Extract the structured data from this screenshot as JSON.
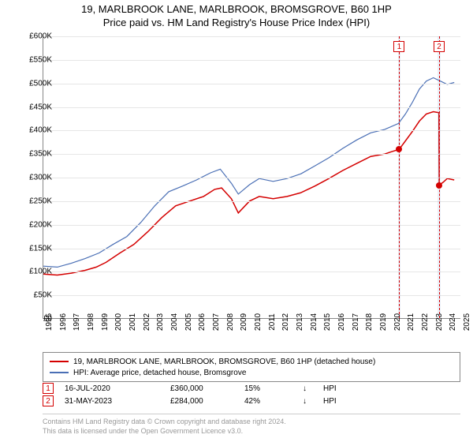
{
  "title": {
    "line1": "19, MARLBROOK LANE, MARLBROOK, BROMSGROVE, B60 1HP",
    "line2": "Price paid vs. HM Land Registry's House Price Index (HPI)"
  },
  "chart": {
    "type": "line",
    "background_color": "#ffffff",
    "grid_color": "#e6e6e6",
    "axis_color": "#888888",
    "xlim": [
      1995,
      2025
    ],
    "ylim": [
      0,
      600000
    ],
    "ytick_step": 50000,
    "yticks": [
      "£0",
      "£50K",
      "£100K",
      "£150K",
      "£200K",
      "£250K",
      "£300K",
      "£350K",
      "£400K",
      "£450K",
      "£500K",
      "£550K",
      "£600K"
    ],
    "xticks": [
      1995,
      1996,
      1997,
      1998,
      1999,
      2000,
      2001,
      2002,
      2003,
      2004,
      2005,
      2006,
      2007,
      2008,
      2009,
      2010,
      2011,
      2012,
      2013,
      2014,
      2015,
      2016,
      2017,
      2018,
      2019,
      2020,
      2021,
      2022,
      2023,
      2024,
      2025
    ],
    "series": [
      {
        "name": "property",
        "label": "19, MARLBROOK LANE, MARLBROOK, BROMSGROVE, B60 1HP (detached house)",
        "color": "#d40000",
        "line_width": 1.5,
        "data": [
          [
            1995.0,
            95000
          ],
          [
            1996.0,
            93000
          ],
          [
            1997.0,
            97000
          ],
          [
            1998.0,
            103000
          ],
          [
            1998.8,
            110000
          ],
          [
            1999.5,
            120000
          ],
          [
            2000.5,
            140000
          ],
          [
            2001.5,
            158000
          ],
          [
            2002.5,
            185000
          ],
          [
            2003.5,
            215000
          ],
          [
            2004.5,
            240000
          ],
          [
            2005.5,
            250000
          ],
          [
            2006.5,
            260000
          ],
          [
            2007.3,
            275000
          ],
          [
            2007.8,
            278000
          ],
          [
            2008.5,
            255000
          ],
          [
            2009.0,
            225000
          ],
          [
            2009.8,
            250000
          ],
          [
            2010.5,
            260000
          ],
          [
            2011.5,
            255000
          ],
          [
            2012.5,
            260000
          ],
          [
            2013.5,
            268000
          ],
          [
            2014.5,
            282000
          ],
          [
            2015.5,
            298000
          ],
          [
            2016.5,
            315000
          ],
          [
            2017.5,
            330000
          ],
          [
            2018.5,
            345000
          ],
          [
            2019.5,
            350000
          ],
          [
            2020.0,
            355000
          ],
          [
            2020.55,
            360000
          ],
          [
            2021.0,
            378000
          ],
          [
            2021.5,
            398000
          ],
          [
            2022.0,
            420000
          ],
          [
            2022.5,
            435000
          ],
          [
            2023.0,
            440000
          ],
          [
            2023.4,
            438000
          ],
          [
            2023.42,
            284000
          ],
          [
            2023.7,
            290000
          ],
          [
            2024.0,
            298000
          ],
          [
            2024.5,
            295000
          ]
        ]
      },
      {
        "name": "hpi",
        "label": "HPI: Average price, detached house, Bromsgrove",
        "color": "#4a6fb5",
        "line_width": 1.2,
        "data": [
          [
            1995.0,
            112000
          ],
          [
            1996.0,
            110000
          ],
          [
            1997.0,
            118000
          ],
          [
            1998.0,
            128000
          ],
          [
            1999.0,
            140000
          ],
          [
            2000.0,
            158000
          ],
          [
            2001.0,
            175000
          ],
          [
            2002.0,
            205000
          ],
          [
            2003.0,
            240000
          ],
          [
            2004.0,
            270000
          ],
          [
            2005.0,
            282000
          ],
          [
            2006.0,
            295000
          ],
          [
            2007.0,
            310000
          ],
          [
            2007.7,
            318000
          ],
          [
            2008.5,
            288000
          ],
          [
            2009.0,
            265000
          ],
          [
            2009.8,
            285000
          ],
          [
            2010.5,
            298000
          ],
          [
            2011.5,
            292000
          ],
          [
            2012.5,
            298000
          ],
          [
            2013.5,
            308000
          ],
          [
            2014.5,
            325000
          ],
          [
            2015.5,
            342000
          ],
          [
            2016.5,
            362000
          ],
          [
            2017.5,
            380000
          ],
          [
            2018.5,
            395000
          ],
          [
            2019.5,
            402000
          ],
          [
            2020.5,
            415000
          ],
          [
            2021.0,
            435000
          ],
          [
            2021.5,
            460000
          ],
          [
            2022.0,
            488000
          ],
          [
            2022.5,
            505000
          ],
          [
            2023.0,
            512000
          ],
          [
            2023.5,
            505000
          ],
          [
            2024.0,
            498000
          ],
          [
            2024.5,
            502000
          ]
        ]
      }
    ],
    "events": [
      {
        "n": "1",
        "date": "16-JUL-2020",
        "x": 2020.55,
        "price_val": 360000,
        "price": "£360,000",
        "diff": "15%",
        "arrow": "↓",
        "rel": "HPI",
        "color": "#d40000",
        "band": [
          2020.45,
          2020.65
        ]
      },
      {
        "n": "2",
        "date": "31-MAY-2023",
        "x": 2023.42,
        "price_val": 284000,
        "price": "£284,000",
        "diff": "42%",
        "arrow": "↓",
        "rel": "HPI",
        "color": "#d40000",
        "band": [
          2023.3,
          2023.55
        ]
      }
    ]
  },
  "legend": {
    "items": [
      {
        "color": "#d40000",
        "label_key": "chart.series.0.label"
      },
      {
        "color": "#4a6fb5",
        "label_key": "chart.series.1.label"
      }
    ]
  },
  "footer": {
    "line1": "Contains HM Land Registry data © Crown copyright and database right 2024.",
    "line2": "This data is licensed under the Open Government Licence v3.0."
  }
}
